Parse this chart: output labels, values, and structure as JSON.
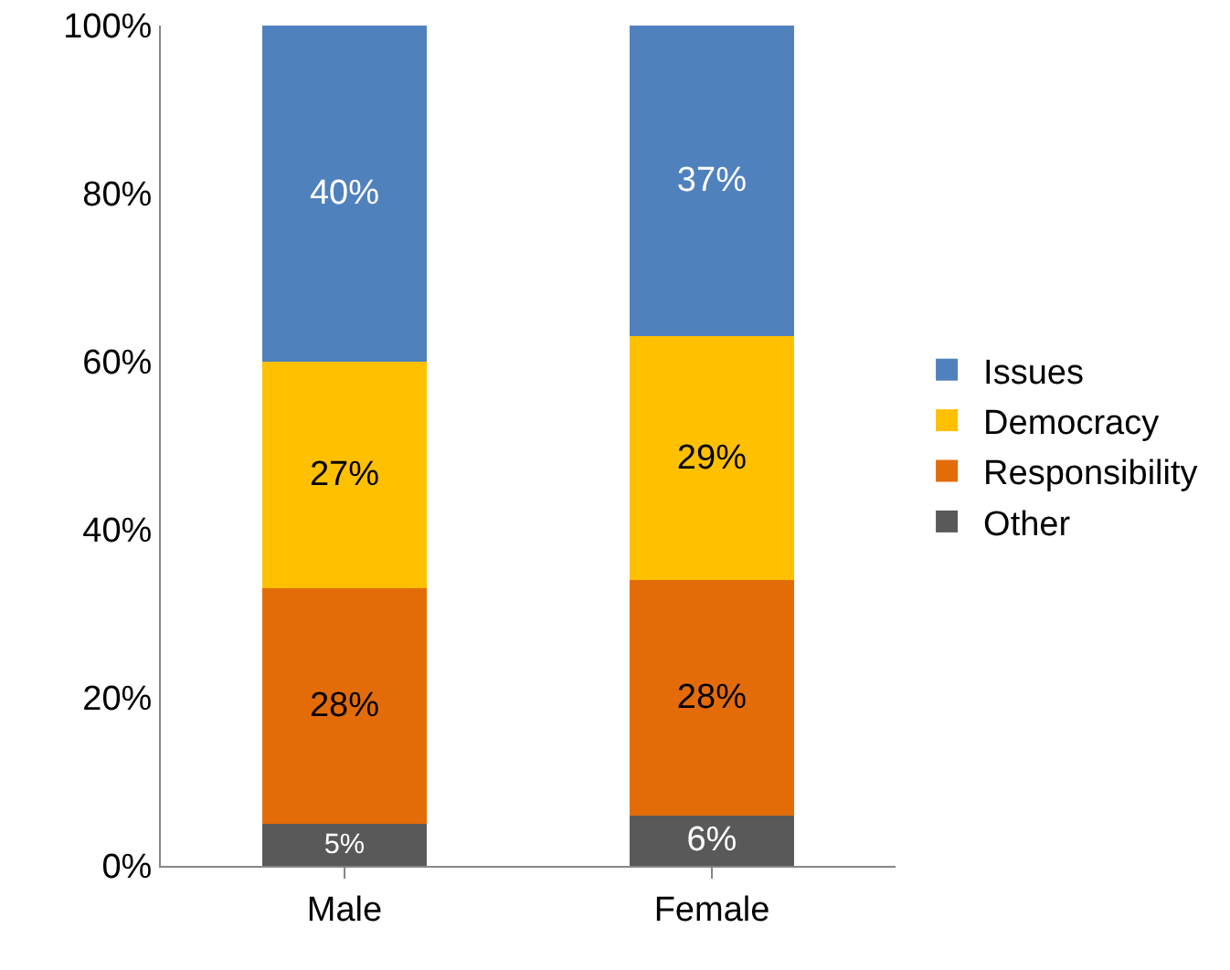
{
  "chart_data": {
    "type": "bar",
    "stacked": true,
    "categories": [
      "Male",
      "Female"
    ],
    "series": [
      {
        "name": "Other",
        "color": "#595959",
        "values": [
          5,
          6
        ],
        "value_labels": [
          "5%",
          "6%"
        ]
      },
      {
        "name": "Responsibility",
        "color": "#e36c09",
        "values": [
          28,
          28
        ],
        "value_labels": [
          "28%",
          "28%"
        ]
      },
      {
        "name": "Democracy",
        "color": "#ffc000",
        "values": [
          27,
          29
        ],
        "value_labels": [
          "27%",
          "29%"
        ]
      },
      {
        "name": "Issues",
        "color": "#4f81bd",
        "values": [
          40,
          37
        ],
        "value_labels": [
          "40%",
          "37%"
        ]
      }
    ],
    "ylim": [
      0,
      100
    ],
    "yticks": [
      {
        "value": 0,
        "label": "0%"
      },
      {
        "value": 20,
        "label": "20%"
      },
      {
        "value": 40,
        "label": "40%"
      },
      {
        "value": 60,
        "label": "60%"
      },
      {
        "value": 80,
        "label": "80%"
      },
      {
        "value": 100,
        "label": "100%"
      }
    ],
    "grid": false,
    "legend": "right"
  }
}
